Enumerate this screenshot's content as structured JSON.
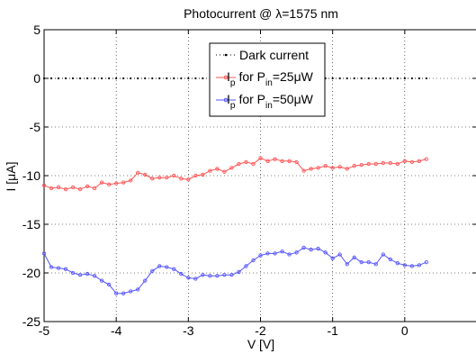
{
  "chart_data": {
    "type": "line",
    "title": "Photocurrent @ λ=1575 nm",
    "xlabel": "V [V]",
    "ylabel": "I [μA]",
    "xlim": [
      -5,
      1
    ],
    "ylim": [
      -25,
      5
    ],
    "xticks": [
      -5,
      -4,
      -3,
      -2,
      -1,
      0
    ],
    "xtick_labels": [
      "-5",
      "-4",
      "-3",
      "-2",
      "-1",
      "0"
    ],
    "yticks": [
      -25,
      -20,
      -15,
      -10,
      -5,
      0,
      5
    ],
    "ytick_labels": [
      "-25",
      "-20",
      "-15",
      "-10",
      "-5",
      "0",
      "5"
    ],
    "grid": true,
    "legend_position": "top-center",
    "legend": {
      "dark": "Dark current",
      "p25": {
        "I": "I",
        "sub_p": "p",
        "for": "for P",
        "sub_in": "in",
        "value": "=25μW"
      },
      "p50": {
        "I": "I",
        "sub_p": "p",
        "for": "for P",
        "sub_in": "in",
        "value": "=50μW"
      }
    },
    "series": [
      {
        "name": "Dark current",
        "color": "#000000",
        "style": "dotted-markers",
        "x": [
          -5.0,
          -4.9,
          -4.8,
          -4.7,
          -4.6,
          -4.5,
          -4.4,
          -4.3,
          -4.2,
          -4.1,
          -4.0,
          -3.9,
          -3.8,
          -3.7,
          -3.6,
          -3.5,
          -3.4,
          -3.3,
          -3.2,
          -3.1,
          -3.0,
          -2.9,
          -2.8,
          -2.7,
          -2.6,
          -2.5,
          -2.4,
          -2.3,
          -2.2,
          -2.1,
          -2.0,
          -1.9,
          -1.8,
          -1.7,
          -1.6,
          -1.5,
          -1.4,
          -1.3,
          -1.2,
          -1.1,
          -1.0,
          -0.9,
          -0.8,
          -0.7,
          -0.6,
          -0.5,
          -0.4,
          -0.3,
          -0.2,
          -0.1,
          0.0,
          0.1,
          0.2,
          0.3
        ],
        "y": [
          0,
          0,
          0,
          0,
          0,
          0,
          0,
          0,
          0,
          0,
          0,
          0,
          0,
          0,
          0,
          0,
          0,
          0,
          0,
          0,
          0,
          0,
          0,
          0,
          0,
          0,
          0,
          0,
          0,
          0,
          0,
          0,
          0,
          0,
          0,
          0,
          0,
          0,
          0,
          0,
          0,
          0,
          0,
          0,
          0,
          0,
          0,
          0,
          0,
          0,
          0,
          0,
          0,
          0
        ]
      },
      {
        "name": "Ip for Pin=25μW",
        "color": "#ff5555",
        "x": [
          -5.0,
          -4.9,
          -4.8,
          -4.7,
          -4.6,
          -4.5,
          -4.4,
          -4.3,
          -4.2,
          -4.1,
          -4.0,
          -3.9,
          -3.8,
          -3.7,
          -3.6,
          -3.5,
          -3.4,
          -3.3,
          -3.2,
          -3.1,
          -3.0,
          -2.9,
          -2.8,
          -2.7,
          -2.6,
          -2.5,
          -2.4,
          -2.3,
          -2.2,
          -2.1,
          -2.0,
          -1.9,
          -1.8,
          -1.7,
          -1.6,
          -1.5,
          -1.4,
          -1.3,
          -1.2,
          -1.1,
          -1.0,
          -0.9,
          -0.8,
          -0.7,
          -0.6,
          -0.5,
          -0.4,
          -0.3,
          -0.2,
          -0.1,
          0.0,
          0.1,
          0.2,
          0.3
        ],
        "y": [
          -11.0,
          -11.3,
          -11.2,
          -11.4,
          -11.2,
          -11.4,
          -11.1,
          -11.3,
          -10.7,
          -10.9,
          -10.8,
          -10.7,
          -10.5,
          -9.7,
          -9.9,
          -10.3,
          -10.2,
          -10.2,
          -10.0,
          -10.3,
          -10.4,
          -10.0,
          -9.9,
          -9.5,
          -9.3,
          -9.6,
          -9.2,
          -8.8,
          -8.6,
          -8.8,
          -8.2,
          -8.5,
          -8.3,
          -8.5,
          -8.5,
          -8.6,
          -9.5,
          -9.3,
          -9.2,
          -9.0,
          -9.2,
          -9.1,
          -9.3,
          -9.0,
          -8.9,
          -8.8,
          -8.8,
          -8.7,
          -8.7,
          -8.8,
          -8.5,
          -8.6,
          -8.5,
          -8.3
        ]
      },
      {
        "name": "Ip for Pin=50μW",
        "color": "#5555ff",
        "x": [
          -5.0,
          -4.9,
          -4.8,
          -4.7,
          -4.6,
          -4.5,
          -4.4,
          -4.3,
          -4.2,
          -4.1,
          -4.0,
          -3.9,
          -3.8,
          -3.7,
          -3.6,
          -3.5,
          -3.4,
          -3.3,
          -3.2,
          -3.1,
          -3.0,
          -2.9,
          -2.8,
          -2.7,
          -2.6,
          -2.5,
          -2.4,
          -2.3,
          -2.2,
          -2.1,
          -2.0,
          -1.9,
          -1.8,
          -1.7,
          -1.6,
          -1.5,
          -1.4,
          -1.3,
          -1.2,
          -1.1,
          -1.0,
          -0.9,
          -0.8,
          -0.7,
          -0.6,
          -0.5,
          -0.4,
          -0.3,
          -0.2,
          -0.1,
          0.0,
          0.1,
          0.2,
          0.3
        ],
        "y": [
          -18.0,
          -19.4,
          -19.5,
          -19.6,
          -20.0,
          -20.2,
          -20.1,
          -20.3,
          -20.8,
          -21.2,
          -22.1,
          -22.1,
          -21.9,
          -21.7,
          -20.8,
          -19.8,
          -19.3,
          -19.4,
          -19.6,
          -20.1,
          -20.5,
          -20.6,
          -20.2,
          -20.3,
          -20.3,
          -20.2,
          -20.2,
          -19.9,
          -19.3,
          -18.7,
          -18.2,
          -18.0,
          -18.0,
          -17.8,
          -18.1,
          -17.9,
          -17.4,
          -17.6,
          -17.5,
          -17.9,
          -18.5,
          -18.1,
          -19.1,
          -18.4,
          -18.9,
          -18.9,
          -19.1,
          -18.1,
          -18.6,
          -19.0,
          -19.2,
          -19.3,
          -19.2,
          -18.9
        ]
      }
    ]
  }
}
